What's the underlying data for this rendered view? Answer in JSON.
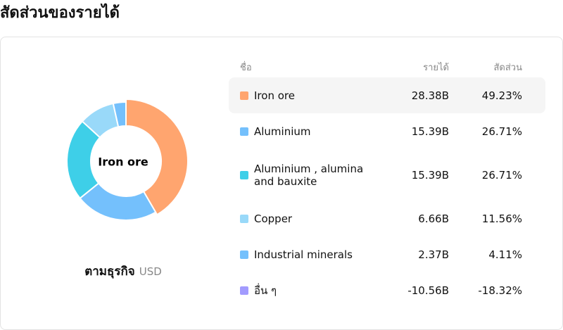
{
  "title": "สัดส่วนของรายได้",
  "chart_data": {
    "type": "pie",
    "center_label": "Iron ore",
    "footer": "ตามธุรกิจ",
    "currency": "USD",
    "columns": [
      "ชื่อ",
      "รายได้",
      "สัดส่วน"
    ],
    "categories": [
      "Iron ore",
      "Aluminium",
      "Aluminium , alumina and bauxite",
      "Copper",
      "Industrial minerals",
      "อื่น ๆ"
    ],
    "values": [
      28.38,
      15.39,
      15.39,
      6.66,
      2.37,
      -10.56
    ],
    "value_labels": [
      "28.38B",
      "15.39B",
      "15.39B",
      "6.66B",
      "2.37B",
      "-10.56B"
    ],
    "shares": [
      49.23,
      26.71,
      26.71,
      11.56,
      4.11,
      -18.32
    ],
    "share_labels": [
      "49.23%",
      "26.71%",
      "26.71%",
      "11.56%",
      "4.11%",
      "-18.32%"
    ],
    "colors": [
      "#ffa56f",
      "#74c0fc",
      "#3ecfe8",
      "#99d9f9",
      "#74c0fc",
      "#a29bfe"
    ]
  }
}
